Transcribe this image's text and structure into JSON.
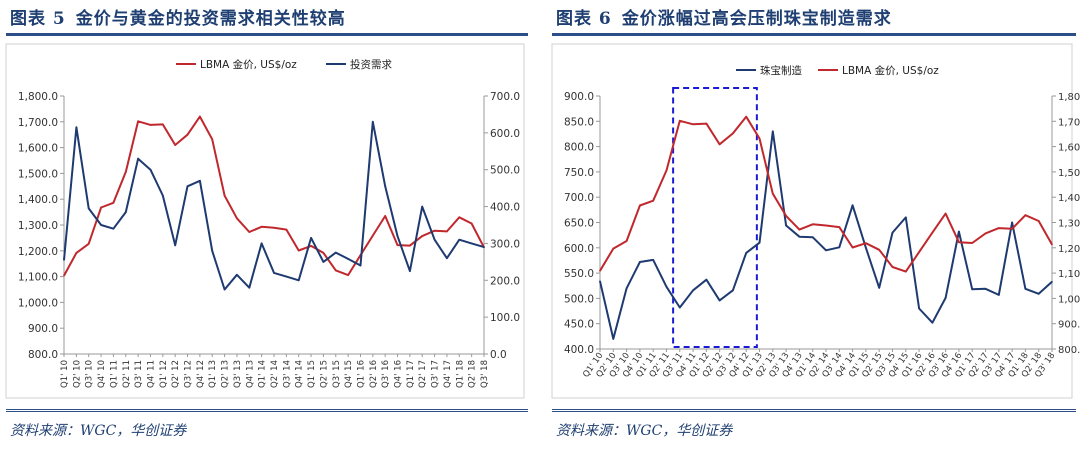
{
  "panels": [
    {
      "label": "图表 5",
      "title": "金价与黄金的投资需求相关性较高",
      "source": "资料来源：WGC，华创证券"
    },
    {
      "label": "图表 6",
      "title": "金价涨幅过高会压制珠宝制造需求",
      "source": "资料来源：WGC，华创证券"
    }
  ],
  "chart_data": [
    {
      "type": "line",
      "title": "金价与黄金的投资需求相关性较高",
      "categories": [
        "Q1' 10",
        "Q2' 10",
        "Q3' 10",
        "Q4' 10",
        "Q1' 11",
        "Q2' 11",
        "Q3' 11",
        "Q4' 11",
        "Q1' 12",
        "Q2' 12",
        "Q3' 12",
        "Q4' 12",
        "Q1' 13",
        "Q2' 13",
        "Q3' 13",
        "Q4' 13",
        "Q1' 14",
        "Q2' 14",
        "Q3' 14",
        "Q4' 14",
        "Q1' 15",
        "Q2' 15",
        "Q3' 15",
        "Q4' 15",
        "Q1' 16",
        "Q2' 16",
        "Q3' 16",
        "Q4' 16",
        "Q1' 17",
        "Q2' 17",
        "Q3' 17",
        "Q4' 17",
        "Q1' 18",
        "Q2' 18",
        "Q3' 18"
      ],
      "series": [
        {
          "name": "LBMA 金价, US$/oz",
          "axis": "left",
          "color": "#c0282d",
          "values": [
            1104,
            1192,
            1227,
            1368,
            1386,
            1506,
            1702,
            1688,
            1690,
            1610,
            1650,
            1720,
            1632,
            1414,
            1326,
            1273,
            1293,
            1289,
            1282,
            1201,
            1219,
            1192,
            1124,
            1106,
            1183,
            1259,
            1335,
            1222,
            1220,
            1257,
            1278,
            1275,
            1330,
            1306,
            1213
          ]
        },
        {
          "name": "投资需求",
          "axis": "right",
          "color": "#1e3a70",
          "values": [
            255,
            615,
            395,
            350,
            340,
            385,
            530,
            500,
            430,
            295,
            455,
            470,
            280,
            175,
            215,
            180,
            300,
            220,
            210,
            200,
            315,
            250,
            275,
            258,
            240,
            630,
            455,
            320,
            225,
            400,
            310,
            260,
            310,
            300,
            290
          ]
        }
      ],
      "legend": [
        "LBMA 金价, US$/oz",
        "投资需求"
      ],
      "y_left": {
        "min": 800,
        "max": 1800,
        "ticks": [
          "800.0",
          "900.0",
          "1,000.0",
          "1,100.0",
          "1,200.0",
          "1,300.0",
          "1,400.0",
          "1,500.0",
          "1,600.0",
          "1,700.0",
          "1,800.0"
        ]
      },
      "y_right": {
        "min": 0,
        "max": 700,
        "ticks": [
          "0.0",
          "100.0",
          "200.0",
          "300.0",
          "400.0",
          "500.0",
          "600.0",
          "700.0"
        ]
      }
    },
    {
      "type": "line",
      "title": "金价涨幅过高会压制珠宝制造需求",
      "categories": [
        "Q1' 10",
        "Q2' 10",
        "Q3' 10",
        "Q4' 10",
        "Q1' 11",
        "Q2' 11",
        "Q3' 11",
        "Q4' 11",
        "Q1' 12",
        "Q2' 12",
        "Q3' 12",
        "Q4' 12",
        "Q1' 13",
        "Q2' 13",
        "Q3' 13",
        "Q4' 13",
        "Q1' 14",
        "Q2' 14",
        "Q3' 14",
        "Q4' 14",
        "Q1' 15",
        "Q2' 15",
        "Q3' 15",
        "Q4' 15",
        "Q1' 16",
        "Q2' 16",
        "Q3' 16",
        "Q4' 16",
        "Q1' 17",
        "Q2' 17",
        "Q3' 17",
        "Q4' 17",
        "Q1' 18",
        "Q2' 18",
        "Q3' 18"
      ],
      "series": [
        {
          "name": "珠宝制造",
          "axis": "left",
          "color": "#1e3a70",
          "values": [
            534,
            420,
            520,
            572,
            576,
            523,
            482,
            516,
            537,
            496,
            516,
            590,
            610,
            830,
            644,
            622,
            621,
            595,
            601,
            684,
            600,
            521,
            630,
            660,
            480,
            452,
            501,
            632,
            518,
            519,
            507,
            650,
            519,
            509,
            533
          ]
        },
        {
          "name": "LBMA 金价, US$/oz",
          "axis": "right",
          "color": "#c0282d",
          "values": [
            1109,
            1197,
            1227,
            1367,
            1386,
            1506,
            1702,
            1688,
            1691,
            1609,
            1652,
            1718,
            1632,
            1414,
            1326,
            1272,
            1293,
            1288,
            1282,
            1201,
            1218,
            1192,
            1124,
            1106,
            1183,
            1260,
            1335,
            1222,
            1219,
            1257,
            1278,
            1275,
            1329,
            1306,
            1213
          ]
        }
      ],
      "legend": [
        "珠宝制造",
        "LBMA 金价, US$/oz"
      ],
      "y_left": {
        "min": 400,
        "max": 900,
        "ticks": [
          "400.0",
          "450.0",
          "500.0",
          "550.0",
          "600.0",
          "650.0",
          "700.0",
          "750.0",
          "800.0",
          "850.0",
          "900.0"
        ]
      },
      "y_right": {
        "min": 800,
        "max": 1800,
        "ticks": [
          "800.0",
          "900.0",
          "1,000.0",
          "1,100.0",
          "1,200.0",
          "1,300.0",
          "1,400.0",
          "1,500.0",
          "1,600.0",
          "1,700.0",
          "1,800.0"
        ]
      },
      "highlight": {
        "from_category": "Q3' 11",
        "to_category": "Q4' 12",
        "style": "dashed box"
      }
    }
  ]
}
